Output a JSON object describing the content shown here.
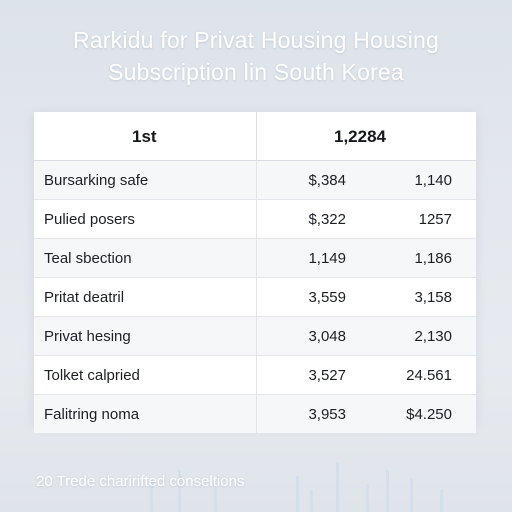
{
  "title": {
    "line1": "Rarkidu for Privat Housing Housing",
    "line2": "Subscription lin South Korea"
  },
  "table": {
    "header_left": "1st",
    "header_right": "1,2284"
  },
  "chart_data": {
    "type": "table",
    "title": "Rarkidu for Privat Housing Housing Subscription lin South Korea",
    "columns": [
      "1st",
      "1,2284"
    ],
    "rows": [
      {
        "label": "Bursarking safe",
        "v1": "$,384",
        "v2": "1,140"
      },
      {
        "label": "Pulied posers",
        "v1": "$,322",
        "v2": "1257"
      },
      {
        "label": "Teal sbection",
        "v1": "1,149",
        "v2": "1,186"
      },
      {
        "label": "Pritat deatril",
        "v1": "3,559",
        "v2": "3,158"
      },
      {
        "label": "Privat hesing",
        "v1": "3,048",
        "v2": "2,130"
      },
      {
        "label": "Tolket calpried",
        "v1": "3,527",
        "v2": "24.561"
      },
      {
        "label": "Falitring noma",
        "v1": "3,953",
        "v2": "$4.250"
      }
    ]
  },
  "footer": "20 Trede charirifted conseltions",
  "colors": {
    "title": "#ffffff",
    "background": "#e4e8ee",
    "decor_bars": "#c9dbef"
  }
}
